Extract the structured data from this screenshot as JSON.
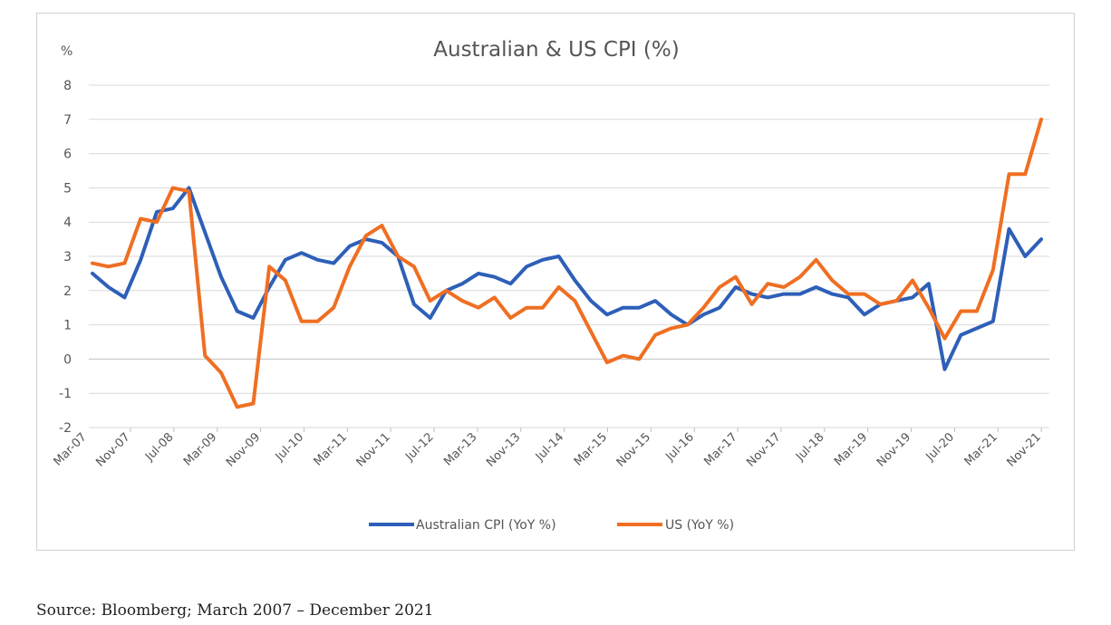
{
  "chart_data": {
    "type": "line",
    "title": "Australian & US CPI (%)",
    "ylabel": "%",
    "xlabel": "",
    "ylim": [
      -2,
      8
    ],
    "yticks": [
      -2,
      -1,
      0,
      1,
      2,
      3,
      4,
      5,
      6,
      7,
      8
    ],
    "grid": "horizontal",
    "legend_position": "bottom",
    "x_tick_labels": [
      "Mar-07",
      "Nov-07",
      "Jul-08",
      "Mar-09",
      "Nov-09",
      "Jul-10",
      "Mar-11",
      "Nov-11",
      "Jul-12",
      "Mar-13",
      "Nov-13",
      "Jul-14",
      "Mar-15",
      "Nov-15",
      "Jul-16",
      "Mar-17",
      "Nov-17",
      "Jul-18",
      "Mar-19",
      "Nov-19",
      "Jul-20",
      "Mar-21",
      "Nov-21"
    ],
    "series": [
      {
        "name": "Australian CPI (YoY %)",
        "color": "#2e5fb8",
        "values": [
          2.5,
          2.1,
          1.8,
          2.9,
          4.3,
          4.4,
          5.0,
          3.7,
          2.4,
          1.4,
          1.2,
          2.1,
          2.9,
          3.1,
          2.9,
          2.8,
          3.3,
          3.5,
          3.4,
          3.0,
          1.6,
          1.2,
          2.0,
          2.2,
          2.5,
          2.4,
          2.2,
          2.7,
          2.9,
          3.0,
          2.3,
          1.7,
          1.3,
          1.5,
          1.5,
          1.7,
          1.3,
          1.0,
          1.3,
          1.5,
          2.1,
          1.9,
          1.8,
          1.9,
          1.9,
          2.1,
          1.9,
          1.8,
          1.3,
          1.6,
          1.7,
          1.8,
          2.2,
          -0.3,
          0.7,
          0.9,
          1.1,
          3.8,
          3.0,
          3.5
        ]
      },
      {
        "name": "US (YoY %)",
        "color": "#ef6f22",
        "values": [
          2.8,
          2.7,
          2.8,
          4.1,
          4.0,
          5.0,
          4.9,
          0.1,
          -0.4,
          -1.4,
          -1.3,
          2.7,
          2.3,
          1.1,
          1.1,
          1.5,
          2.7,
          3.6,
          3.9,
          3.0,
          2.7,
          1.7,
          2.0,
          1.7,
          1.5,
          1.8,
          1.2,
          1.5,
          1.5,
          2.1,
          1.7,
          0.8,
          -0.1,
          0.1,
          0.0,
          0.7,
          0.9,
          1.0,
          1.5,
          2.1,
          2.4,
          1.6,
          2.2,
          2.1,
          2.4,
          2.9,
          2.3,
          1.9,
          1.9,
          1.6,
          1.7,
          2.3,
          1.5,
          0.6,
          1.4,
          1.4,
          2.6,
          5.4,
          5.4,
          7.0
        ]
      }
    ]
  },
  "source_note": "Source: Bloomberg; March 2007 – December 2021"
}
